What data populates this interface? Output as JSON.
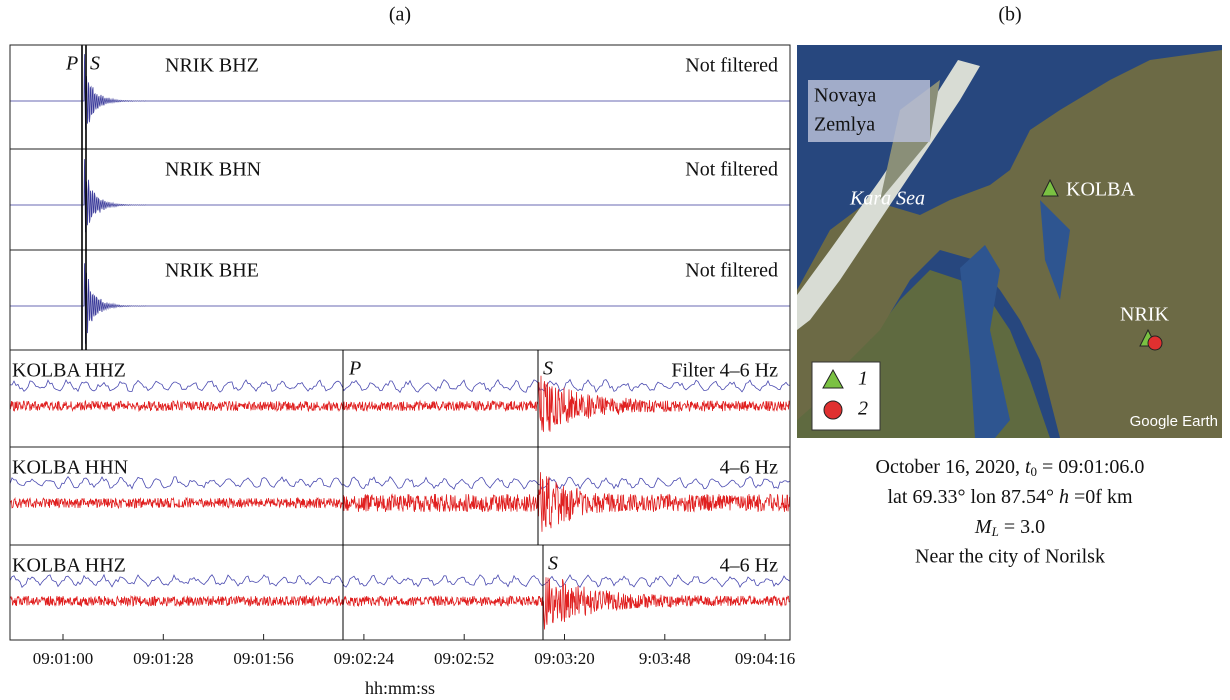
{
  "panel_labels": [
    "(a)",
    "(b)"
  ],
  "traces": [
    {
      "station": "NRIK BHZ",
      "filter": "Not filtered",
      "picks": [
        "P",
        "S"
      ]
    },
    {
      "station": "NRIK BHN",
      "filter": "Not filtered",
      "picks": []
    },
    {
      "station": "NRIK BHE",
      "filter": "Not filtered",
      "picks": []
    },
    {
      "station": "KOLBA HHZ",
      "filter": "Filter 4–6 Hz",
      "picks": [
        "P",
        "S"
      ]
    },
    {
      "station": "KOLBA HHN",
      "filter": "4–6 Hz",
      "picks": []
    },
    {
      "station": "KOLBA HHZ",
      "filter": "4–6 Hz",
      "picks": [
        "S"
      ]
    }
  ],
  "x_axis": {
    "ticks": [
      "09:01:00",
      "09:01:28",
      "09:01:56",
      "09:02:24",
      "09:02:52",
      "09:03:20",
      "9:03:48",
      "09:04:16"
    ],
    "label": "hh:mm:ss"
  },
  "map": {
    "island": [
      "Novaya",
      "Zemlya"
    ],
    "sea": "Kara Sea",
    "station_1": "KOLBA",
    "station_2": "NRIK",
    "legend": [
      "1",
      "2"
    ],
    "credit": "Google Earth"
  },
  "caption": {
    "line1": [
      "October 16, 2020, ",
      "t",
      "0",
      " = 09:01:06.0"
    ],
    "line2": [
      "lat 69.33° lon 87.54° ",
      "h",
      " =0f km"
    ],
    "line3": [
      "M",
      "L",
      " = 3.0"
    ],
    "line4": "Near the city of Norilsk"
  }
}
